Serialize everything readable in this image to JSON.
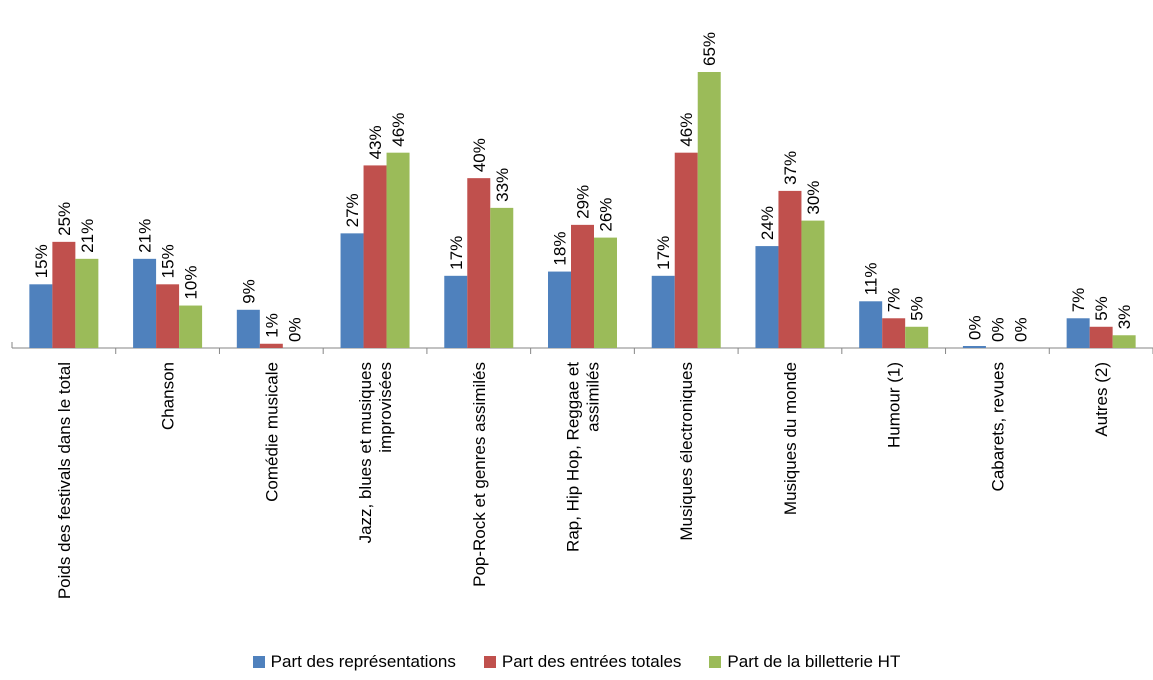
{
  "chart_data": {
    "type": "bar",
    "categories": [
      [
        "Poids des festivals dans le total"
      ],
      [
        "Chanson"
      ],
      [
        "Comédie musicale"
      ],
      [
        "Jazz, blues et musiques",
        "improvisées"
      ],
      [
        "Pop-Rock et genres assimilés"
      ],
      [
        "Rap, Hip Hop, Reggae et",
        "assimilés"
      ],
      [
        "Musiques électroniques"
      ],
      [
        "Musiques du monde"
      ],
      [
        "Humour (1)"
      ],
      [
        "Cabarets, revues"
      ],
      [
        "Autres (2)"
      ]
    ],
    "series": [
      {
        "name": "Part des représentations",
        "color": "#4F81BD",
        "values": [
          15,
          21,
          9,
          27,
          17,
          18,
          17,
          24,
          11,
          0,
          7
        ]
      },
      {
        "name": "Part des entrées totales",
        "color": "#C0504D",
        "values": [
          25,
          15,
          1,
          43,
          40,
          29,
          46,
          37,
          7,
          0,
          5
        ]
      },
      {
        "name": "Part de la billetterie HT",
        "color": "#9BBB59",
        "values": [
          21,
          10,
          0,
          46,
          33,
          26,
          65,
          30,
          5,
          0,
          3
        ]
      }
    ],
    "data_labels": [
      [
        "15%",
        "21%",
        "9%",
        "27%",
        "17%",
        "18%",
        "17%",
        "24%",
        "11%",
        "0%",
        "7%"
      ],
      [
        "25%",
        "15%",
        "1%",
        "43%",
        "40%",
        "29%",
        "46%",
        "37%",
        "7%",
        "0%",
        "5%"
      ],
      [
        "21%",
        "10%",
        "0%",
        "46%",
        "33%",
        "26%",
        "65%",
        "30%",
        "5%",
        "0%",
        "3%"
      ]
    ],
    "ylim": [
      0,
      65
    ],
    "legend_position": "bottom",
    "grid": false
  }
}
